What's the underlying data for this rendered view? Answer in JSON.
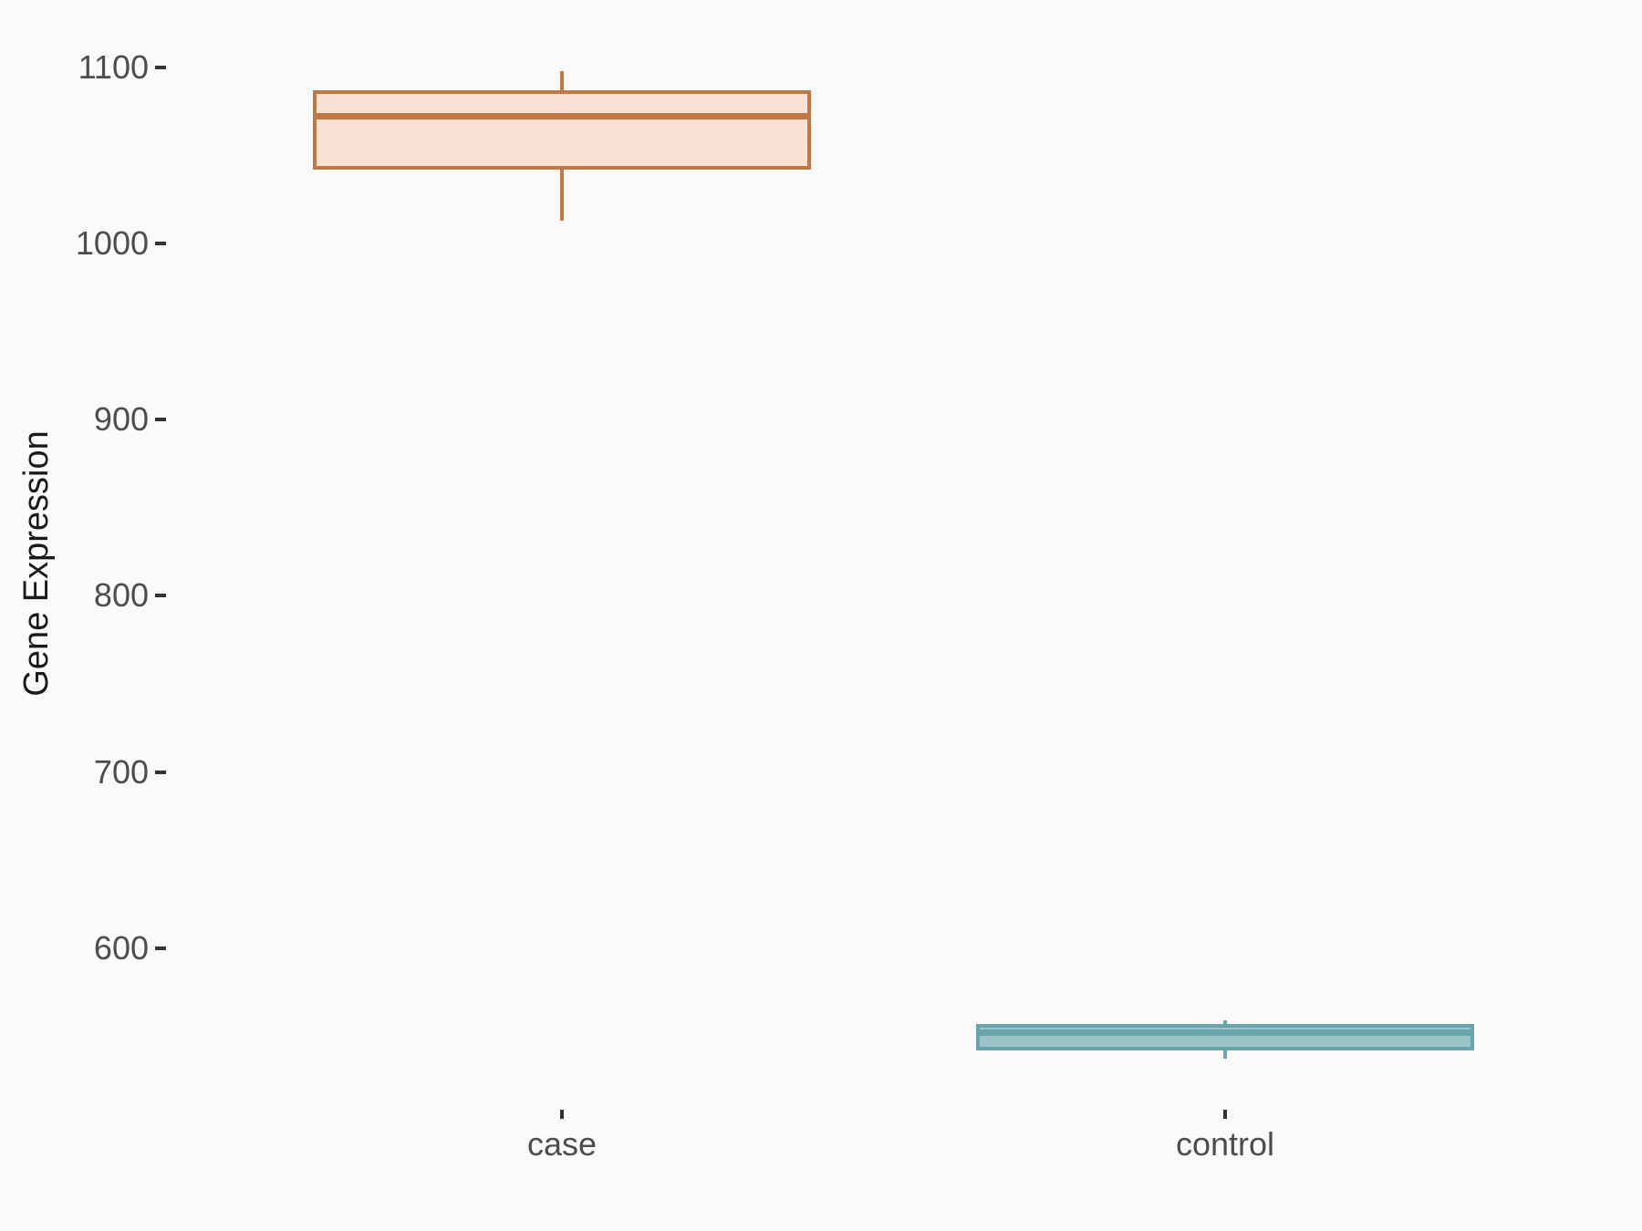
{
  "figure": {
    "background": "#FAFAFA"
  },
  "chart_data": {
    "type": "boxplot",
    "title": "",
    "xlabel": "",
    "ylabel": "Gene Expression",
    "categories": [
      "case",
      "control"
    ],
    "y_ticks": [
      600,
      700,
      800,
      900,
      1000,
      1100
    ],
    "ylim": [
      515,
      1138
    ],
    "grid": false,
    "legend": false,
    "colors": {
      "background": "#FAFAFA",
      "tick_mark": "#333333",
      "tick_label": "#4D4D4D",
      "axis_title": "#1A1A1A"
    },
    "series": [
      {
        "name": "case",
        "min": 1013,
        "q1": 1043,
        "median": 1072,
        "q3": 1086,
        "max": 1098,
        "stroke": "#BF7845",
        "fill": "#FBE0D4"
      },
      {
        "name": "control",
        "min": 537,
        "q1": 543,
        "median": 552,
        "q3": 556,
        "max": 559,
        "stroke": "#69A5AC",
        "fill": "#9BC3C8"
      }
    ]
  }
}
